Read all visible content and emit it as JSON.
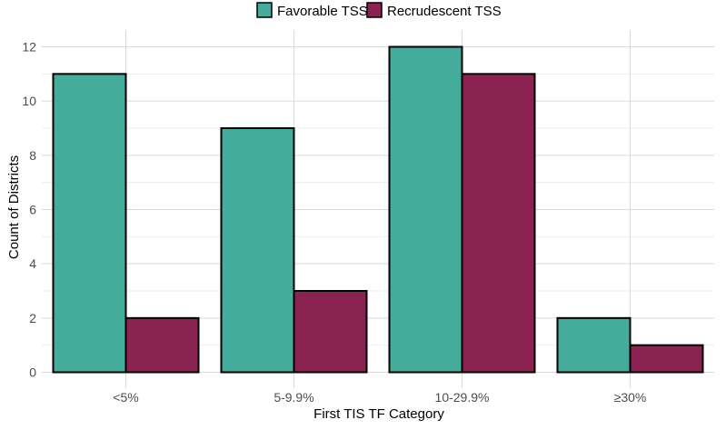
{
  "chart_data": {
    "type": "bar",
    "categories": [
      "<5%",
      "5-9.9%",
      "10-29.9%",
      "≥30%"
    ],
    "series": [
      {
        "name": "Favorable TSS",
        "values": [
          11,
          9,
          12,
          2
        ],
        "color": "#45ab9a"
      },
      {
        "name": "Recrudescent TSS",
        "values": [
          2,
          3,
          11,
          1
        ],
        "color": "#8a2252"
      }
    ],
    "xlabel": "First TIS TF Category",
    "ylabel": "Count of Districts",
    "ylim": [
      0,
      12
    ],
    "yticks": [
      0,
      2,
      4,
      6,
      8,
      10,
      12
    ],
    "grid": true,
    "legend_position": "top"
  }
}
